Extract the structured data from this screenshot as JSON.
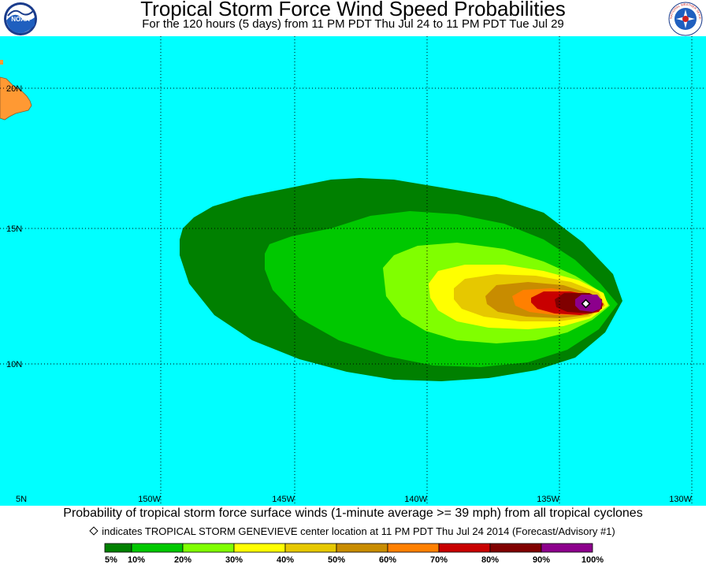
{
  "header": {
    "title": "Tropical Storm Force Wind Speed Probabilities",
    "subtitle": "For the 120 hours (5 days) from 11 PM PDT Thu Jul 24 to 11 PM PDT Tue Jul 29",
    "left_logo": {
      "text": "NOAA",
      "icon": "noaa-logo"
    },
    "right_logo": {
      "text": "NATIONAL WEATHER SERVICE",
      "icon": "nws-logo"
    }
  },
  "map": {
    "ocean_color": "#00ffff",
    "land_color": "#ff9933",
    "lat_labels": [
      "20N",
      "15N",
      "10N",
      "5N"
    ],
    "lon_labels": [
      "150W",
      "145W",
      "140W",
      "135W",
      "130W"
    ],
    "storm_marker": "diamond"
  },
  "footer": {
    "caption": "Probability of tropical storm force surface winds (1-minute average >= 39 mph) from all tropical cyclones",
    "storm_note": "indicates TROPICAL STORM GENEVIEVE center location at 11 PM PDT Thu Jul 24 2014 (Forecast/Advisory #1)"
  },
  "legend": {
    "colors": [
      "#008000",
      "#00c800",
      "#80ff00",
      "#ffff00",
      "#e6c800",
      "#c88c00",
      "#ff8000",
      "#c80000",
      "#800000",
      "#8c008c"
    ],
    "labels": [
      "5%",
      "10%",
      "20%",
      "30%",
      "40%",
      "50%",
      "60%",
      "70%",
      "80%",
      "90%",
      "100%"
    ]
  }
}
